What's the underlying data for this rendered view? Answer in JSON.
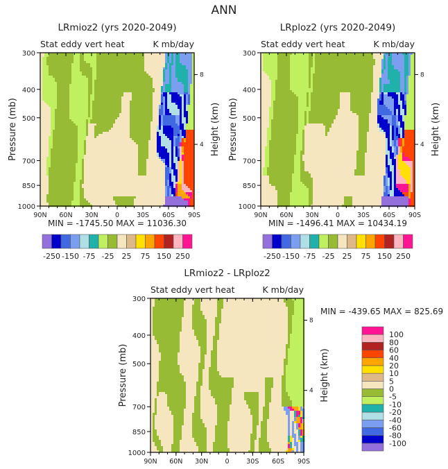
{
  "title": "ANN",
  "chart_data": [
    {
      "type": "heatmap",
      "id": "p1",
      "title": "LRmioz2 (yrs 2020-2049)",
      "left_subtitle": "Stat eddy vert heat",
      "right_subtitle": "K mb/day",
      "ylabel": "Pressure (mb)",
      "ylabel_right": "Height (km)",
      "yticks": [
        300,
        400,
        500,
        700,
        850,
        1000
      ],
      "ylim": [
        1000,
        300
      ],
      "yticks_right": [
        "8",
        "4"
      ],
      "xticks": [
        "90N",
        "60N",
        "30N",
        "0",
        "30S",
        "60S",
        "90S"
      ],
      "xlim": [
        90,
        -90
      ],
      "min_max": "MIN = -1745.50   MAX = 11036.30",
      "levels": [
        -250,
        -200,
        -150,
        -100,
        -75,
        -50,
        -25,
        0,
        25,
        50,
        75,
        100,
        150,
        200,
        250
      ],
      "level_labels": [
        "-250",
        "-150",
        "-75",
        "-25",
        "25",
        "75",
        "150",
        "250"
      ]
    },
    {
      "type": "heatmap",
      "id": "p2",
      "title": "LRploz2 (yrs 2020-2049)",
      "left_subtitle": "Stat eddy vert heat",
      "right_subtitle": "K mb/day",
      "ylabel": "Pressure (mb)",
      "ylabel_right": "Height (km)",
      "yticks": [
        300,
        400,
        500,
        700,
        850,
        1000
      ],
      "ylim": [
        1000,
        300
      ],
      "yticks_right": [
        "8",
        "4"
      ],
      "xticks": [
        "90N",
        "60N",
        "30N",
        "0",
        "30S",
        "60S",
        "90S"
      ],
      "xlim": [
        90,
        -90
      ],
      "min_max": "MIN = -1496.41   MAX = 10434.19",
      "levels": [
        -250,
        -200,
        -150,
        -100,
        -75,
        -50,
        -25,
        0,
        25,
        50,
        75,
        100,
        150,
        200,
        250
      ],
      "level_labels": [
        "-250",
        "-150",
        "-75",
        "-25",
        "25",
        "75",
        "150",
        "250"
      ]
    },
    {
      "type": "heatmap",
      "id": "p3",
      "title": "LRmioz2 - LRploz2",
      "left_subtitle": "Stat eddy vert heat",
      "right_subtitle": "K mb/day",
      "ylabel": "Pressure (mb)",
      "ylabel_right": "Height (km)",
      "yticks": [
        300,
        400,
        500,
        700,
        850,
        1000
      ],
      "ylim": [
        1000,
        300
      ],
      "yticks_right": [
        "8",
        "4"
      ],
      "xticks": [
        "90N",
        "60N",
        "30N",
        "0",
        "30S",
        "60S",
        "90S"
      ],
      "xlim": [
        90,
        -90
      ],
      "min_max": "MIN = -439.65   MAX = 825.69",
      "levels": [
        -100,
        -80,
        -60,
        -40,
        -20,
        -10,
        -5,
        0,
        5,
        10,
        20,
        40,
        60,
        80,
        100
      ],
      "level_labels": [
        "-100",
        "-80",
        "-60",
        "-40",
        "-20",
        "-10",
        "-5",
        "0",
        "5",
        "10",
        "20",
        "40",
        "60",
        "80",
        "100"
      ]
    }
  ],
  "palette": [
    "#9370db",
    "#0000cd",
    "#4169e1",
    "#7b9ef0",
    "#b0e0e6",
    "#20b2aa",
    "#c0f060",
    "#98bb35",
    "#f5e6c0",
    "#deb887",
    "#ffe000",
    "#ffa500",
    "#ff4500",
    "#b22222",
    "#ffb6c1",
    "#ff1493"
  ]
}
